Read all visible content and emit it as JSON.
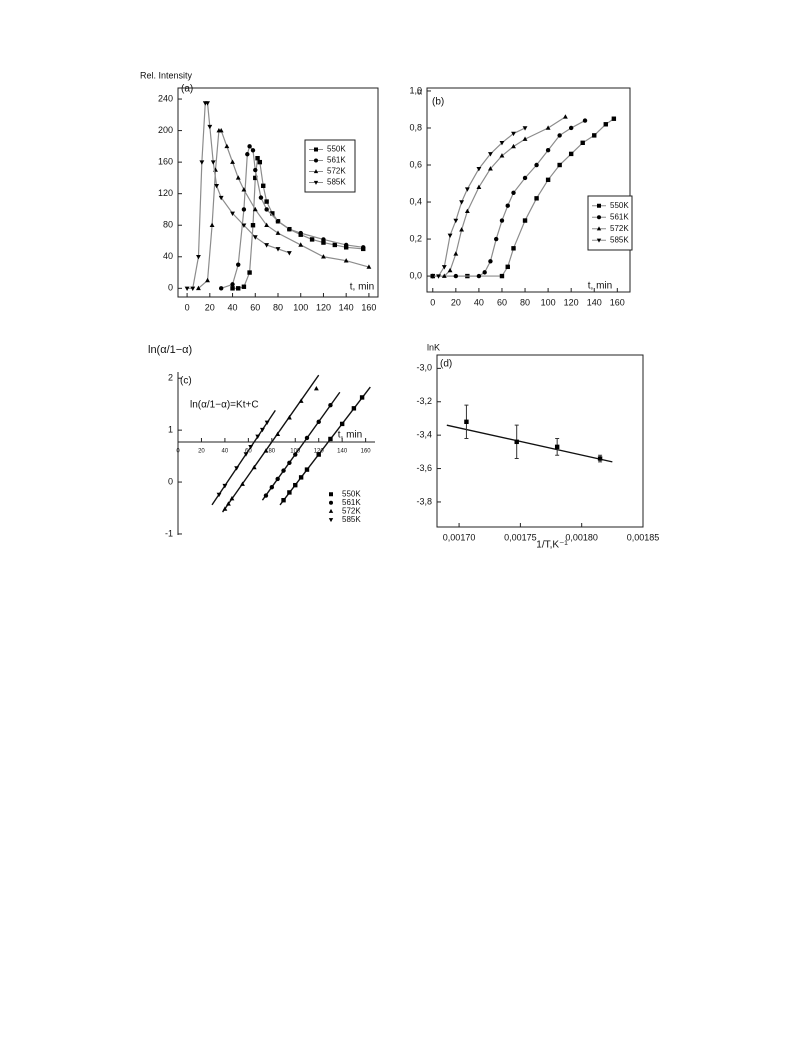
{
  "chart_data": [
    {
      "type": "line",
      "panel_label": "(a)",
      "ylabel": "Rel. Intensity",
      "xlabel": "t, min",
      "xlim": [
        -8,
        168
      ],
      "ylim": [
        -11,
        254
      ],
      "xticks": [
        0,
        20,
        40,
        60,
        80,
        100,
        120,
        140,
        160
      ],
      "yticks": [
        0,
        40,
        80,
        120,
        160,
        200,
        240
      ],
      "series": [
        {
          "name": "550K",
          "marker": "square",
          "color": "#000000",
          "line_color": "#8c8c8c",
          "x": [
            40,
            45,
            50,
            55,
            58,
            60,
            62,
            64,
            67,
            70,
            75,
            80,
            90,
            100,
            110,
            120,
            130,
            140,
            155
          ],
          "values": [
            0,
            0,
            2,
            20,
            80,
            140,
            165,
            160,
            130,
            110,
            95,
            85,
            75,
            68,
            62,
            58,
            55,
            52,
            50
          ]
        },
        {
          "name": "561K",
          "marker": "circle",
          "color": "#000000",
          "line_color": "#8c8c8c",
          "x": [
            30,
            40,
            45,
            50,
            53,
            55,
            58,
            60,
            65,
            70,
            80,
            90,
            100,
            120,
            140,
            155
          ],
          "values": [
            0,
            5,
            30,
            100,
            170,
            180,
            175,
            150,
            115,
            100,
            85,
            75,
            70,
            62,
            55,
            52
          ]
        },
        {
          "name": "572K",
          "marker": "triangle-up",
          "color": "#000000",
          "line_color": "#8c8c8c",
          "x": [
            10,
            18,
            22,
            25,
            28,
            30,
            35,
            40,
            45,
            50,
            60,
            70,
            80,
            100,
            120,
            140,
            160
          ],
          "values": [
            0,
            10,
            80,
            150,
            200,
            200,
            180,
            160,
            140,
            125,
            100,
            80,
            70,
            55,
            40,
            35,
            27
          ]
        },
        {
          "name": "585K",
          "marker": "triangle-down",
          "color": "#000000",
          "line_color": "#8c8c8c",
          "x": [
            0,
            5,
            10,
            13,
            16,
            18,
            20,
            23,
            26,
            30,
            40,
            50,
            60,
            70,
            80,
            90
          ],
          "values": [
            0,
            0,
            40,
            160,
            235,
            235,
            205,
            160,
            130,
            115,
            95,
            80,
            65,
            55,
            50,
            45
          ]
        }
      ]
    },
    {
      "type": "line",
      "panel_label": "(b)",
      "ylabel": "α",
      "xlabel": "t, min",
      "xlim": [
        -5,
        171
      ],
      "ylim": [
        -0.086,
        1.016
      ],
      "xticks": [
        0,
        20,
        40,
        60,
        80,
        100,
        120,
        140,
        160
      ],
      "yticks": [
        {
          "value": 0,
          "label": "0,0"
        },
        {
          "value": 0.2,
          "label": "0,2"
        },
        {
          "value": 0.4,
          "label": "0,4"
        },
        {
          "value": 0.6,
          "label": "0,6"
        },
        {
          "value": 0.8,
          "label": "0,8"
        },
        {
          "value": 1,
          "label": "1,0"
        }
      ],
      "series": [
        {
          "name": "550K",
          "marker": "square",
          "color": "#000000",
          "line_color": "#8c8c8c",
          "x": [
            0,
            30,
            60,
            65,
            70,
            80,
            90,
            100,
            110,
            120,
            130,
            140,
            150,
            157
          ],
          "values": [
            0,
            0,
            0,
            0.05,
            0.15,
            0.3,
            0.42,
            0.52,
            0.6,
            0.66,
            0.72,
            0.76,
            0.82,
            0.85
          ]
        },
        {
          "name": "561K",
          "marker": "circle",
          "color": "#000000",
          "line_color": "#8c8c8c",
          "x": [
            0,
            20,
            40,
            45,
            50,
            55,
            60,
            65,
            70,
            80,
            90,
            100,
            110,
            120,
            132
          ],
          "values": [
            0,
            0,
            0,
            0.02,
            0.08,
            0.2,
            0.3,
            0.38,
            0.45,
            0.53,
            0.6,
            0.68,
            0.76,
            0.8,
            0.84
          ]
        },
        {
          "name": "572K",
          "marker": "triangle-up",
          "color": "#000000",
          "line_color": "#8c8c8c",
          "x": [
            0,
            10,
            15,
            20,
            25,
            30,
            40,
            50,
            60,
            70,
            80,
            100,
            115
          ],
          "values": [
            0,
            0,
            0.03,
            0.12,
            0.25,
            0.35,
            0.48,
            0.58,
            0.65,
            0.7,
            0.74,
            0.8,
            0.86
          ]
        },
        {
          "name": "585K",
          "marker": "triangle-down",
          "color": "#000000",
          "line_color": "#8c8c8c",
          "x": [
            0,
            5,
            10,
            15,
            20,
            25,
            30,
            40,
            50,
            60,
            70,
            80
          ],
          "values": [
            0,
            0,
            0.05,
            0.22,
            0.3,
            0.4,
            0.47,
            0.58,
            0.66,
            0.72,
            0.77,
            0.8
          ]
        }
      ]
    },
    {
      "type": "scatter",
      "panel_label": "(c)",
      "ylabel": "ln(α/1−α)",
      "xlabel": "t, min",
      "annotation": "ln(α/1−α)=Kt+C",
      "xlim": [
        0,
        168
      ],
      "ylim": [
        -1.02,
        2.12
      ],
      "xticks": [
        0,
        20,
        40,
        60,
        80,
        100,
        120,
        140,
        160
      ],
      "yticks": [
        2,
        1,
        0,
        -1
      ],
      "series": [
        {
          "name": "550K",
          "marker": "square",
          "color": "#000000",
          "x": [
            90,
            95,
            100,
            105,
            110,
            120,
            130,
            140,
            150,
            157
          ],
          "values": [
            -0.35,
            -0.2,
            -0.06,
            0.09,
            0.24,
            0.53,
            0.83,
            1.12,
            1.42,
            1.63
          ],
          "fit_x": [
            87,
            164
          ],
          "fit_y": [
            -0.44,
            1.83
          ]
        },
        {
          "name": "561K",
          "marker": "circle",
          "color": "#000000",
          "x": [
            75,
            80,
            85,
            90,
            95,
            100,
            110,
            120,
            130
          ],
          "values": [
            -0.26,
            -0.1,
            0.06,
            0.22,
            0.37,
            0.53,
            0.85,
            1.16,
            1.48
          ],
          "fit_x": [
            72,
            138
          ],
          "fit_y": [
            -0.35,
            1.73
          ]
        },
        {
          "name": "572K",
          "marker": "triangle-up",
          "color": "#000000",
          "x": [
            40,
            43,
            46,
            55,
            65,
            75,
            85,
            95,
            105,
            118
          ],
          "values": [
            -0.52,
            -0.42,
            -0.32,
            -0.04,
            0.28,
            0.6,
            0.92,
            1.24,
            1.56,
            1.8
          ],
          "fit_x": [
            38,
            120
          ],
          "fit_y": [
            -0.58,
            2.06
          ]
        },
        {
          "name": "585K",
          "marker": "triangle-down",
          "color": "#000000",
          "x": [
            35,
            40,
            50,
            58,
            62,
            68,
            72,
            76
          ],
          "values": [
            -0.24,
            -0.07,
            0.27,
            0.54,
            0.68,
            0.88,
            1.01,
            1.15
          ],
          "fit_x": [
            29,
            83
          ],
          "fit_y": [
            -0.44,
            1.38
          ]
        }
      ]
    },
    {
      "type": "scatter",
      "panel_label": "(d)",
      "ylabel": "lnK",
      "xlabel": "1/T,K⁻¹",
      "xlim": [
        0.001682,
        0.00185
      ],
      "ylim": [
        -3.95,
        -2.92
      ],
      "xticks": [
        {
          "value": 0.0017,
          "label": "0,00170"
        },
        {
          "value": 0.00175,
          "label": "0,00175"
        },
        {
          "value": 0.0018,
          "label": "0,00180"
        },
        {
          "value": 0.00185,
          "label": "0,00185"
        }
      ],
      "yticks": [
        {
          "value": -3.0,
          "label": "-3,0"
        },
        {
          "value": -3.2,
          "label": "-3,2"
        },
        {
          "value": -3.4,
          "label": "-3,4"
        },
        {
          "value": -3.6,
          "label": "-3,6"
        },
        {
          "value": -3.8,
          "label": "-3,8"
        }
      ],
      "series": [
        {
          "marker": "square",
          "color": "#000000",
          "x": [
            0.001706,
            0.001747,
            0.00178,
            0.001815
          ],
          "values": [
            -3.32,
            -3.44,
            -3.47,
            -3.54
          ],
          "errors": [
            0.1,
            0.1,
            0.05,
            0.02
          ],
          "fit_x": [
            0.00169,
            0.001825
          ],
          "fit_y": [
            -3.34,
            -3.56
          ]
        }
      ]
    }
  ]
}
